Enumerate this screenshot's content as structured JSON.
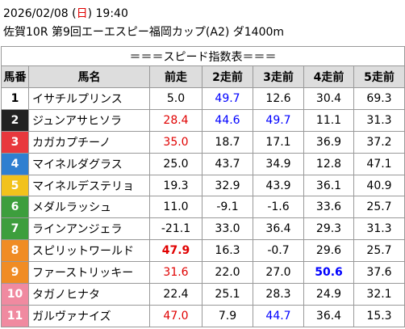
{
  "header": {
    "line1": [
      "2026/02/08 (",
      "日",
      ") 19:40"
    ],
    "weekday_color": "#e00000",
    "line2": "佐賀10R 第9回エーエスピー福岡カップ(A2) ダ1400m"
  },
  "table": {
    "title": "＝＝＝スピード指数表＝＝＝",
    "columns": [
      "馬番",
      "馬名",
      "前走",
      "2走前",
      "3走前",
      "4走前",
      "5走前"
    ],
    "rows": [
      {
        "num": "1",
        "frame_color": "#ffffff",
        "num_color": "#000000",
        "name": "イサチルプリンス",
        "values": [
          "5.0",
          "49.7",
          "12.6",
          "30.4",
          "69.3"
        ],
        "styles": [
          null,
          "blue",
          null,
          null,
          null
        ]
      },
      {
        "num": "2",
        "frame_color": "#222222",
        "num_color": "#ffffff",
        "name": "ジュンアサヒソラ",
        "values": [
          "28.4",
          "44.6",
          "49.7",
          "11.1",
          "31.3"
        ],
        "styles": [
          "red",
          "blue",
          "blue",
          null,
          null
        ]
      },
      {
        "num": "3",
        "frame_color": "#e8383d",
        "num_color": "#ffffff",
        "name": "カガカプチーノ",
        "values": [
          "35.0",
          "18.7",
          "17.1",
          "36.9",
          "37.2"
        ],
        "styles": [
          "red",
          null,
          null,
          null,
          null
        ]
      },
      {
        "num": "4",
        "frame_color": "#2f7fd0",
        "num_color": "#ffffff",
        "name": "マイネルダグラス",
        "values": [
          "25.0",
          "43.7",
          "34.9",
          "12.8",
          "47.1"
        ],
        "styles": [
          null,
          null,
          null,
          null,
          null
        ]
      },
      {
        "num": "5",
        "frame_color": "#f2c21c",
        "num_color": "#ffffff",
        "name": "マイネルデステリョ",
        "values": [
          "19.3",
          "32.9",
          "43.9",
          "36.1",
          "40.9"
        ],
        "styles": [
          null,
          null,
          null,
          null,
          null
        ]
      },
      {
        "num": "6",
        "frame_color": "#3d9e3d",
        "num_color": "#ffffff",
        "name": "メダルラッシュ",
        "values": [
          "11.0",
          "-9.1",
          "-1.6",
          "33.6",
          "25.7"
        ],
        "styles": [
          null,
          null,
          null,
          null,
          null
        ]
      },
      {
        "num": "7",
        "frame_color": "#3d9e3d",
        "num_color": "#ffffff",
        "name": "ラインアンジェラ",
        "values": [
          "-21.1",
          "33.0",
          "36.4",
          "29.3",
          "31.3"
        ],
        "styles": [
          null,
          null,
          null,
          null,
          null
        ]
      },
      {
        "num": "8",
        "frame_color": "#f08c24",
        "num_color": "#ffffff",
        "name": "スピリットワールド",
        "values": [
          "47.9",
          "16.3",
          "-0.7",
          "29.6",
          "25.7"
        ],
        "styles": [
          "red-bold",
          null,
          null,
          null,
          null
        ]
      },
      {
        "num": "9",
        "frame_color": "#f08c24",
        "num_color": "#ffffff",
        "name": "ファーストリッキー",
        "values": [
          "31.6",
          "22.0",
          "27.0",
          "50.6",
          "37.6"
        ],
        "styles": [
          "red",
          null,
          null,
          "blue-bold",
          null
        ]
      },
      {
        "num": "10",
        "frame_color": "#f08aa0",
        "num_color": "#ffffff",
        "name": "タガノヒナタ",
        "values": [
          "22.4",
          "25.1",
          "28.3",
          "24.9",
          "32.1"
        ],
        "styles": [
          null,
          null,
          null,
          null,
          null
        ]
      },
      {
        "num": "11",
        "frame_color": "#f08aa0",
        "num_color": "#ffffff",
        "name": "ガルヴァナイズ",
        "values": [
          "47.0",
          "7.9",
          "44.7",
          "36.4",
          "15.3"
        ],
        "styles": [
          "red",
          null,
          "blue",
          null,
          null
        ]
      }
    ]
  }
}
